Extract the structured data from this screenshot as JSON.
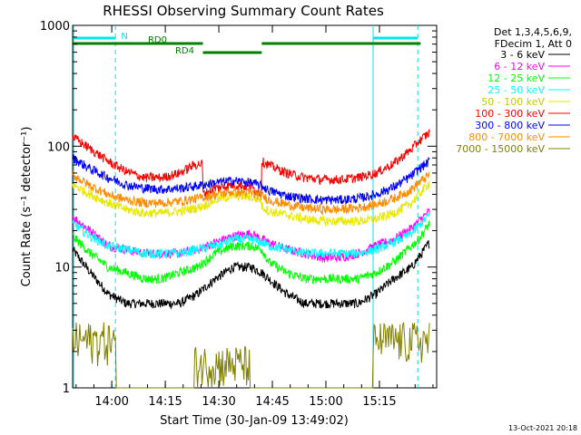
{
  "chart_data": {
    "type": "line",
    "title": "RHESSI Observing Summary Count Rates",
    "xlabel": "Start Time (30-Jan-09 13:49:02)",
    "ylabel": "Count Rate (s⁻¹ detector⁻¹)",
    "x_unit": "minutes after 13:49:02",
    "xlim": [
      0,
      102
    ],
    "ylim": [
      1,
      1000
    ],
    "yscale": "log",
    "x_ticks": [
      {
        "value": 10.97,
        "label": "14:00"
      },
      {
        "value": 25.97,
        "label": "14:15"
      },
      {
        "value": 40.97,
        "label": "14:30"
      },
      {
        "value": 55.97,
        "label": "14:45"
      },
      {
        "value": 70.97,
        "label": "15:00"
      },
      {
        "value": 85.97,
        "label": "15:15"
      }
    ],
    "y_ticks": [
      {
        "value": 1,
        "label": "1"
      },
      {
        "value": 10,
        "label": "10"
      },
      {
        "value": 100,
        "label": "100"
      },
      {
        "value": 1000,
        "label": "1000"
      }
    ],
    "legend_title": [
      "Det 1,3,4,5,6,9,",
      "FDecim 1, Att 0"
    ],
    "legend_position": "right",
    "timestamp": "13-Oct-2021 20:18",
    "night_boundaries": [
      {
        "x": 0.3,
        "style": "solid"
      },
      {
        "x": 12.0,
        "style": "dashed"
      },
      {
        "x": 84.2,
        "style": "solid"
      },
      {
        "x": 96.7,
        "style": "dashed"
      }
    ],
    "flag_bars": [
      {
        "label": "N",
        "color": "#00e5ee",
        "row": 1,
        "segments": [
          [
            0.3,
            12.0
          ],
          [
            84.2,
            96.7
          ]
        ]
      },
      {
        "label": "RD0",
        "color": "#008000",
        "row": 2,
        "segments": [
          [
            0,
            36.5
          ],
          [
            53.0,
            97.5
          ]
        ]
      },
      {
        "label": "RD4",
        "color": "#008000",
        "row": 3,
        "segments": [
          [
            36.5,
            53.0
          ]
        ]
      }
    ],
    "series": [
      {
        "name": "3 - 6 keV",
        "color": "#000000",
        "x": [
          0,
          5,
          10,
          15,
          20,
          25,
          30,
          35,
          40,
          45,
          50,
          53,
          55,
          60,
          65,
          70,
          75,
          80,
          85,
          90,
          95,
          97,
          100
        ],
        "y": [
          14,
          9,
          6,
          5,
          5,
          5,
          5,
          6,
          8,
          10,
          10,
          9,
          8,
          6,
          5,
          5,
          5,
          5,
          6,
          8,
          10,
          12,
          16
        ]
      },
      {
        "name": "6 - 12 keV",
        "color": "#ff00ff",
        "x": [
          0,
          5,
          10,
          15,
          20,
          25,
          30,
          35,
          40,
          45,
          50,
          53,
          55,
          60,
          65,
          70,
          75,
          80,
          85,
          90,
          95,
          97,
          100
        ],
        "y": [
          26,
          20,
          15,
          14,
          13,
          13,
          13,
          14,
          16,
          18,
          19,
          17,
          16,
          14,
          13,
          12,
          12,
          13,
          15,
          17,
          21,
          24,
          29
        ]
      },
      {
        "name": "12 - 25 keV",
        "color": "#00ff00",
        "x": [
          0,
          5,
          10,
          15,
          20,
          25,
          30,
          35,
          40,
          45,
          50,
          53,
          55,
          60,
          65,
          70,
          75,
          80,
          85,
          90,
          95,
          97,
          100
        ],
        "y": [
          18,
          13,
          10,
          9,
          8,
          8,
          9,
          10,
          13,
          15,
          15,
          14,
          11,
          9,
          8,
          8,
          8,
          8,
          9,
          11,
          15,
          17,
          23
        ]
      },
      {
        "name": "25 - 50 keV",
        "color": "#00ffff",
        "x": [
          0,
          5,
          10,
          15,
          20,
          25,
          30,
          35,
          40,
          45,
          50,
          53,
          55,
          60,
          65,
          70,
          75,
          80,
          85,
          90,
          95,
          97,
          100
        ],
        "y": [
          23,
          18,
          15,
          14,
          13,
          13,
          13,
          14,
          15,
          17,
          17,
          16,
          15,
          14,
          13,
          13,
          13,
          13,
          14,
          16,
          19,
          22,
          27
        ]
      },
      {
        "name": "50 - 100 keV",
        "color": "#e8e800",
        "x": [
          0,
          5,
          10,
          15,
          20,
          25,
          30,
          35,
          36.4,
          36.5,
          40,
          45,
          50,
          52.9,
          53,
          55,
          60,
          65,
          70,
          75,
          80,
          85,
          90,
          95,
          97,
          100
        ],
        "y": [
          48,
          40,
          34,
          30,
          28,
          28,
          29,
          31,
          32,
          32,
          36,
          39,
          38,
          36,
          32,
          29,
          27,
          25,
          24,
          24,
          24,
          25,
          28,
          34,
          40,
          50
        ]
      },
      {
        "name": "100 - 300 keV",
        "color": "#ff0000",
        "x": [
          0,
          5,
          10,
          15,
          20,
          25,
          30,
          34,
          36.4,
          36.5,
          40,
          45,
          50,
          52.9,
          53,
          55,
          60,
          65,
          70,
          75,
          80,
          85,
          90,
          95,
          97,
          100
        ],
        "y": [
          120,
          95,
          75,
          62,
          55,
          55,
          60,
          70,
          72,
          40,
          45,
          48,
          46,
          40,
          75,
          70,
          60,
          55,
          53,
          53,
          55,
          60,
          72,
          95,
          110,
          130
        ]
      },
      {
        "name": "300 - 800 keV",
        "color": "#0000ff",
        "x": [
          0,
          5,
          10,
          15,
          20,
          25,
          30,
          35,
          40,
          45,
          50,
          53,
          55,
          60,
          65,
          70,
          75,
          80,
          85,
          90,
          95,
          97,
          100
        ],
        "y": [
          80,
          65,
          55,
          48,
          45,
          44,
          45,
          47,
          50,
          52,
          50,
          47,
          43,
          39,
          37,
          36,
          36,
          37,
          40,
          46,
          57,
          65,
          75
        ]
      },
      {
        "name": "800 - 7000 keV",
        "color": "#ff8c00",
        "x": [
          0,
          5,
          10,
          15,
          20,
          25,
          30,
          35,
          40,
          45,
          50,
          53,
          55,
          60,
          65,
          70,
          75,
          80,
          85,
          90,
          95,
          97,
          100
        ],
        "y": [
          58,
          47,
          40,
          36,
          34,
          34,
          35,
          37,
          40,
          42,
          41,
          39,
          36,
          33,
          31,
          30,
          30,
          31,
          33,
          37,
          44,
          50,
          58
        ]
      },
      {
        "name": "7000 - 15000 keV",
        "color": "#808000",
        "x": [
          0,
          12,
          12.1,
          34,
          34.1,
          49.5,
          49.6,
          84.2,
          84.3,
          100
        ],
        "y": [
          2.5,
          2.5,
          1,
          1,
          1.6,
          1.6,
          1,
          1,
          2.5,
          2.5
        ]
      }
    ]
  }
}
